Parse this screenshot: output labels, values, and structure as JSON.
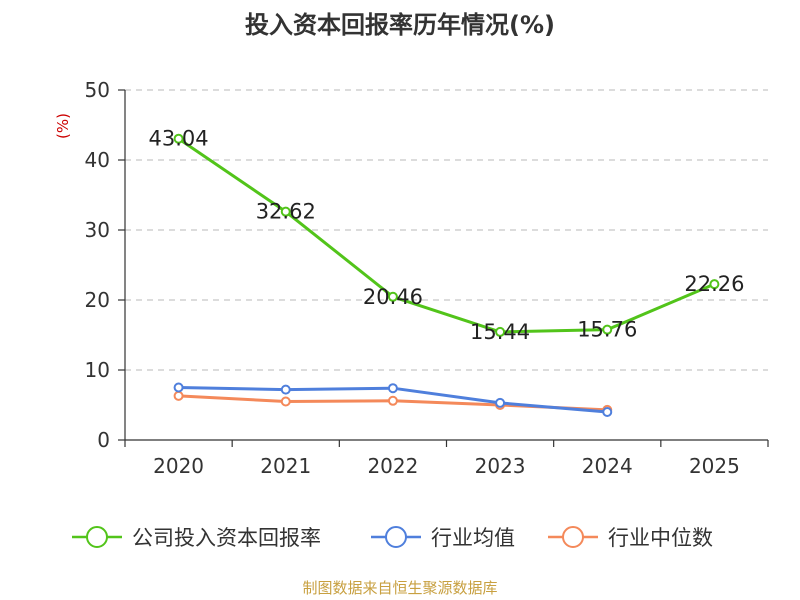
{
  "chart_data": {
    "type": "line",
    "title": "投入资本回报率历年情况(%)",
    "ylabel": "(%)",
    "xlabel": "",
    "categories": [
      "2020",
      "2021",
      "2022",
      "2023",
      "2024",
      "2025"
    ],
    "ylim": [
      0,
      50
    ],
    "yticks": [
      0,
      10,
      20,
      30,
      40,
      50
    ],
    "grid": true,
    "legend_position": "bottom",
    "series": [
      {
        "name": "公司投入资本回报率",
        "color": "#52c41a",
        "values": [
          43.04,
          32.62,
          20.46,
          15.44,
          15.76,
          22.26
        ],
        "labels": [
          "43.04",
          "32.62",
          "20.46",
          "15.44",
          "15.76",
          "22.26"
        ]
      },
      {
        "name": "行业均值",
        "color": "#4f7fdc",
        "values": [
          7.5,
          7.2,
          7.4,
          5.3,
          4.0,
          null
        ]
      },
      {
        "name": "行业中位数",
        "color": "#f4895a",
        "values": [
          6.3,
          5.5,
          5.6,
          5.0,
          4.3,
          null
        ]
      }
    ]
  },
  "source": "制图数据来自恒生聚源数据库"
}
